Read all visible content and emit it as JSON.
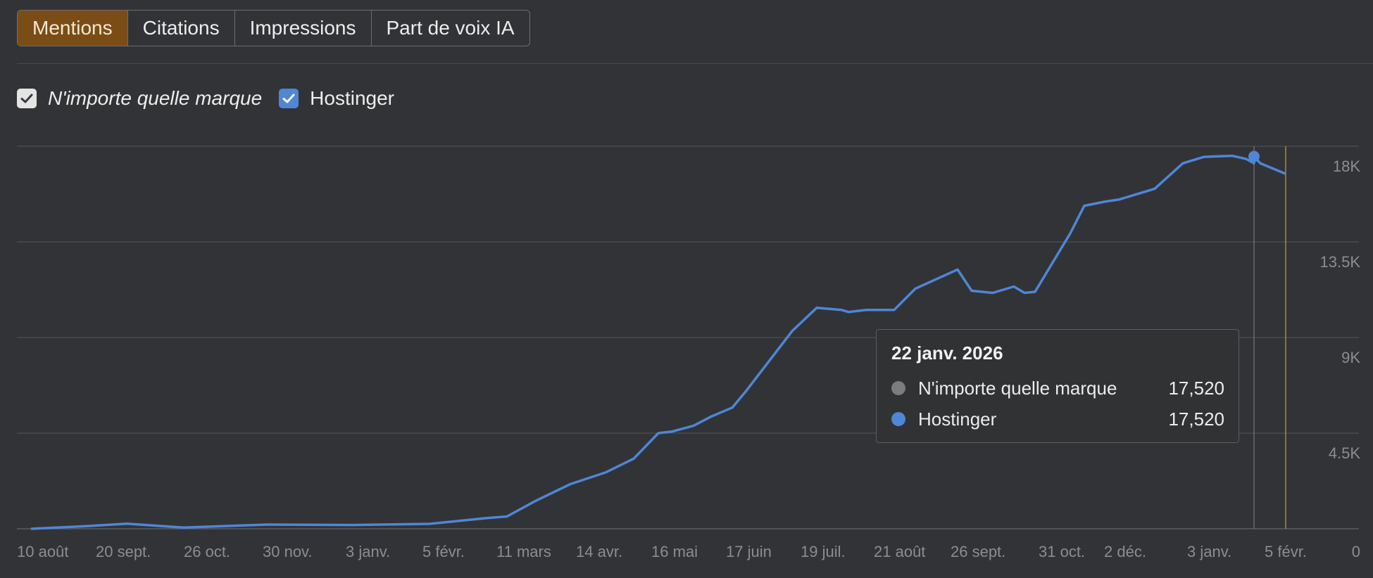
{
  "tabs": [
    {
      "label": "Mentions",
      "active": true
    },
    {
      "label": "Citations",
      "active": false
    },
    {
      "label": "Impressions",
      "active": false
    },
    {
      "label": "Part de voix IA",
      "active": false
    }
  ],
  "legend": {
    "any_brand": "N'importe quelle marque",
    "brand": "Hostinger"
  },
  "colors": {
    "accent": "#7a4d17",
    "series_blue": "#4f86d6",
    "series_gray": "#7c7c7f",
    "cursor_orange": "#b5862c"
  },
  "tooltip": {
    "date": "22 janv. 2026",
    "rows": [
      {
        "name": "N'importe quelle marque",
        "value": "17,520"
      },
      {
        "name": "Hostinger",
        "value": "17,520"
      }
    ]
  },
  "chart_data": {
    "type": "line",
    "title": "",
    "xlabel": "",
    "ylabel": "",
    "ylim": [
      0,
      18000
    ],
    "y_ticks": [
      "0",
      "4.5K",
      "9K",
      "13.5K",
      "18K"
    ],
    "x_tick_labels": [
      "10 août",
      "20 sept.",
      "26 oct.",
      "30 nov.",
      "3 janv.",
      "5 févr.",
      "11 mars",
      "14 avr.",
      "16 mai",
      "17 juin",
      "19 juil.",
      "21 août",
      "26 sept.",
      "31 oct.",
      "2 déc.",
      "3 janv.",
      "5 févr."
    ],
    "grid": true,
    "series": [
      {
        "name": "Hostinger",
        "x": [
          "10 août",
          "1 sept.",
          "20 sept.",
          "26 oct.",
          "30 nov.",
          "3 janv.",
          "5 févr.",
          "1 mars",
          "11 mars",
          "20 mars",
          "1 avr.",
          "14 avr.",
          "25 avr.",
          "5 mai",
          "16 mai",
          "25 mai",
          "5 juin",
          "10 juin",
          "17 juin",
          "1 juil.",
          "10 juil.",
          "19 juil.",
          "21 juil.",
          "25 juil.",
          "1 août",
          "15 août",
          "21 août",
          "1 sept.",
          "10 sept.",
          "14 sept.",
          "20 sept.",
          "26 sept.",
          "5 oct.",
          "15 oct.",
          "25 oct.",
          "31 oct.",
          "10 nov.",
          "20 nov.",
          "1 déc.",
          "2 déc.",
          "15 déc.",
          "25 déc.",
          "3 janv.",
          "15 janv.",
          "22 janv.",
          "5 févr."
        ],
        "values": [
          0,
          120,
          240,
          60,
          200,
          180,
          230,
          500,
          580,
          1300,
          2100,
          2650,
          3300,
          4500,
          4580,
          4850,
          5280,
          5700,
          6500,
          9300,
          10400,
          10300,
          10200,
          10300,
          10300,
          11300,
          12200,
          11200,
          11100,
          11400,
          11100,
          11150,
          13900,
          15200,
          15400,
          15500,
          16000,
          17200,
          17500,
          17520,
          17550,
          17400,
          17200,
          17200,
          17520,
          16700
        ]
      }
    ],
    "tooltip_at": "22 janv. 2026"
  }
}
